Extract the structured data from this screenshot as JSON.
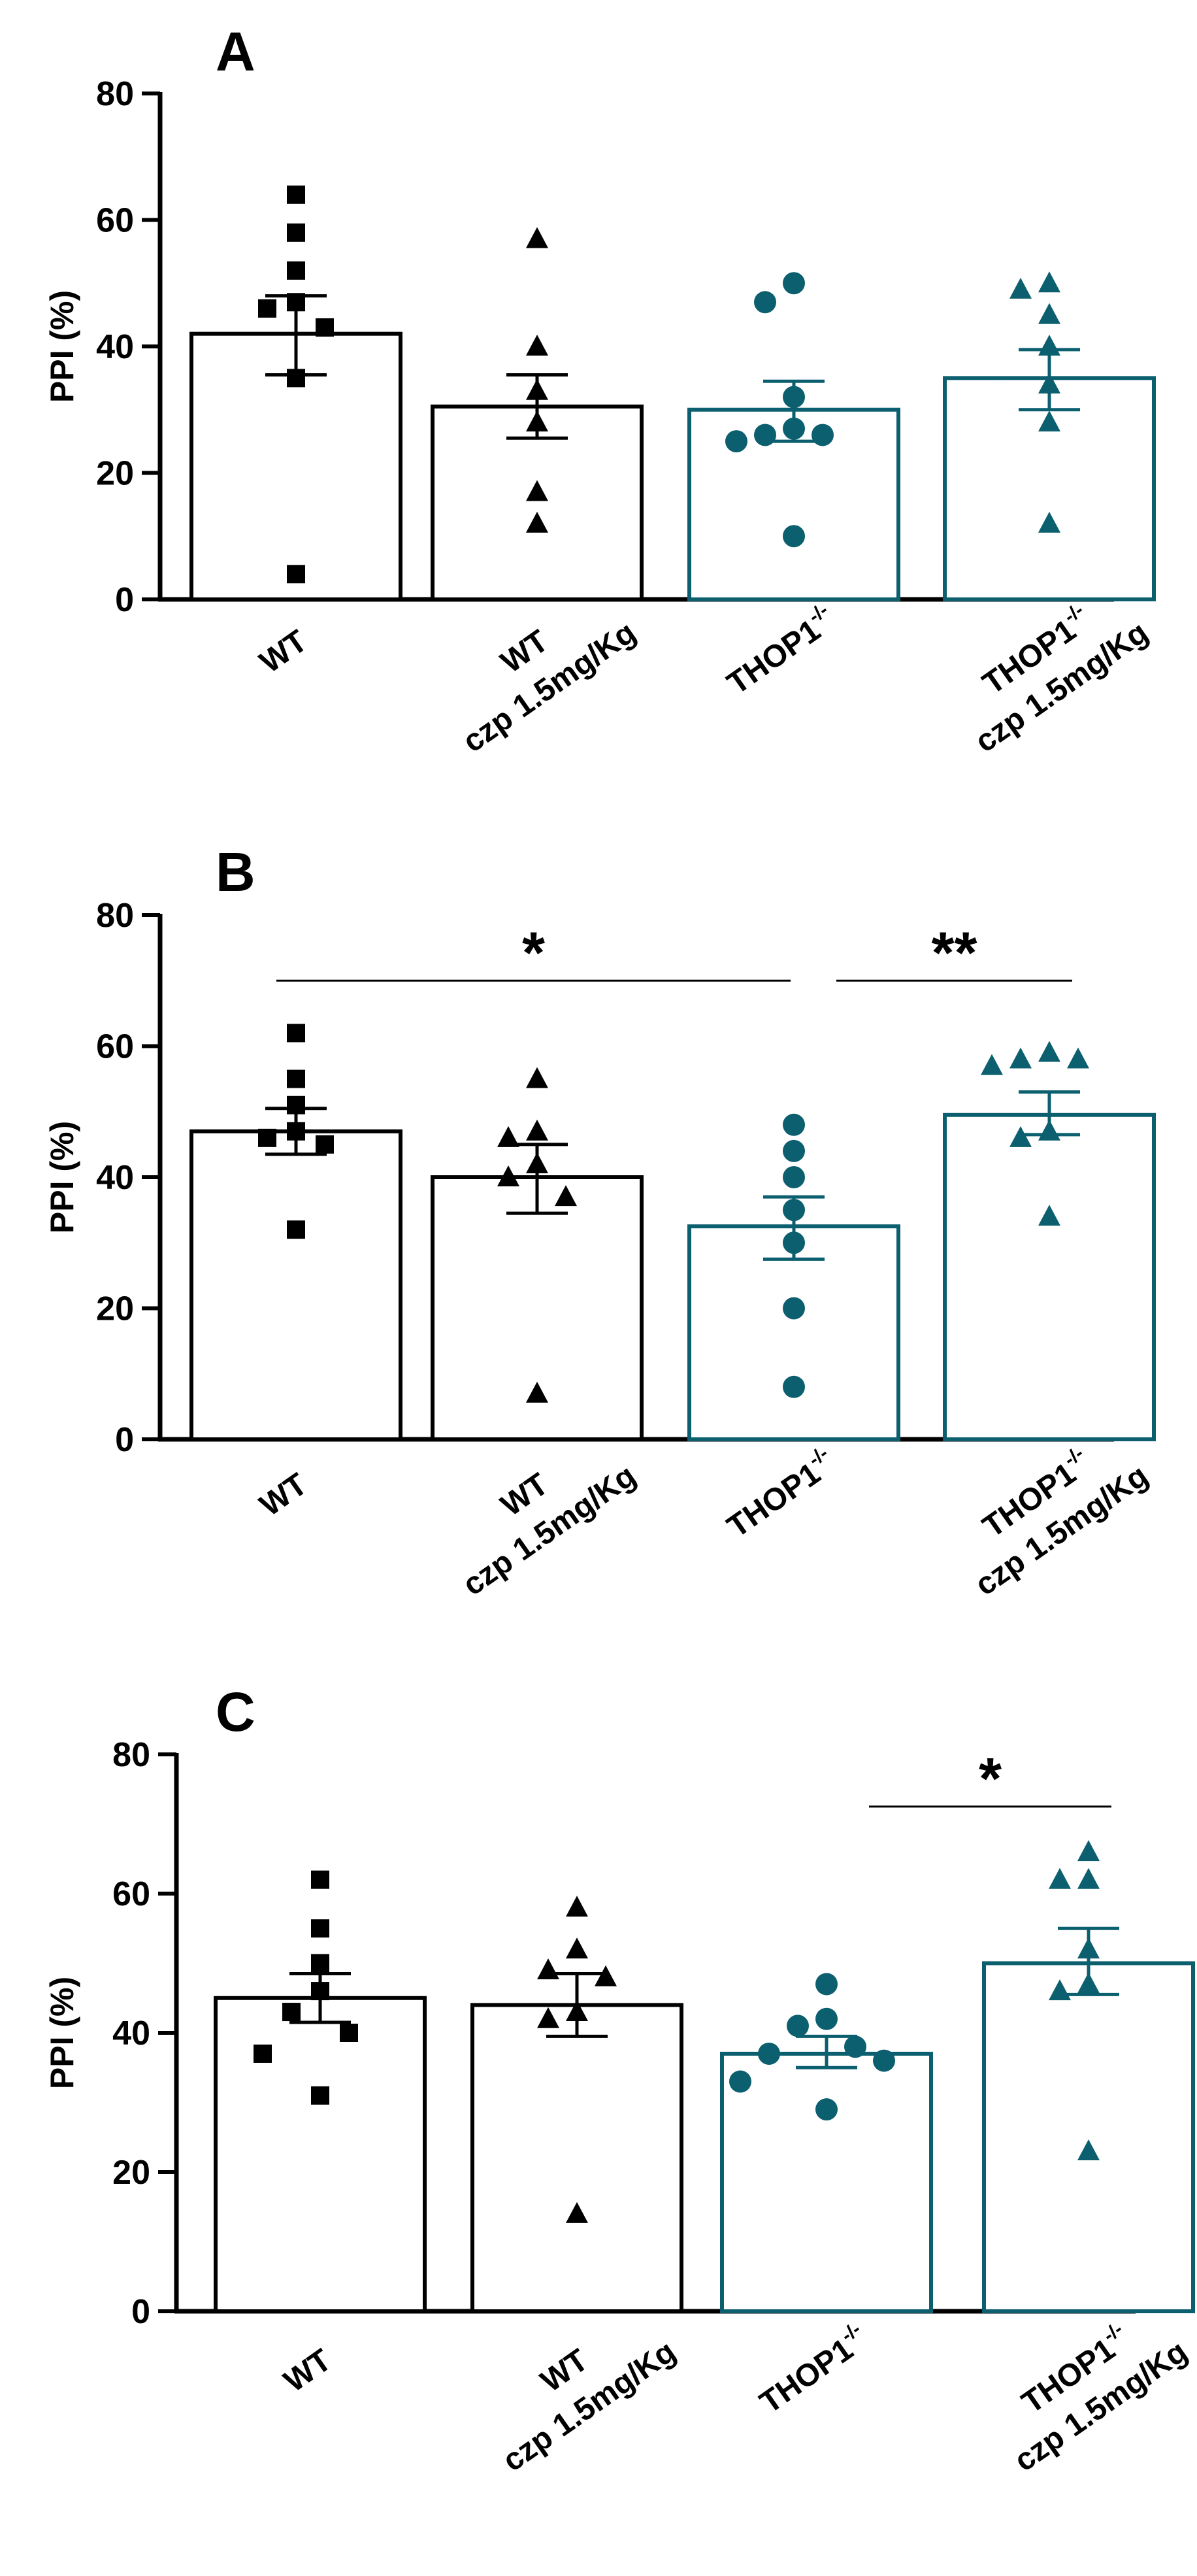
{
  "colors": {
    "black": "#000000",
    "teal": "#0b5f6e",
    "white": "#ffffff"
  },
  "chart_data": [
    {
      "type": "bar",
      "panel_label": "A",
      "ylabel": "PPI (%)",
      "ylim": [
        0,
        80
      ],
      "yticks": [
        "0",
        "20",
        "40",
        "60",
        "80"
      ],
      "categories": [
        {
          "line1": "WT",
          "sup": "",
          "line2": ""
        },
        {
          "line1": "WT",
          "sup": "",
          "line2": "czp 1.5mg/Kg"
        },
        {
          "line1": "THOP1",
          "sup": "-/-",
          "line2": ""
        },
        {
          "line1": "THOP1",
          "sup": "-/-",
          "line2": "czp 1.5mg/Kg"
        }
      ],
      "groups": [
        {
          "name": "WT",
          "mean": 42,
          "sem_low": 35.5,
          "sem_high": 48,
          "marker": "square",
          "color": "black",
          "points": [
            64,
            58,
            52,
            47,
            46,
            43,
            35,
            4
          ]
        },
        {
          "name": "WT czp 1.5mg/Kg",
          "mean": 30.5,
          "sem_low": 25.5,
          "sem_high": 35.5,
          "marker": "triangle",
          "color": "black",
          "points": [
            57,
            40,
            33,
            28,
            17,
            12
          ]
        },
        {
          "name": "THOP1-/-",
          "mean": 30,
          "sem_low": 25,
          "sem_high": 34.5,
          "marker": "circle",
          "color": "teal",
          "points": [
            50,
            47,
            32,
            27,
            26,
            26,
            25,
            10
          ]
        },
        {
          "name": "THOP1-/- czp 1.5mg/Kg",
          "mean": 35,
          "sem_low": 30,
          "sem_high": 39.5,
          "marker": "triangle",
          "color": "teal",
          "points": [
            50,
            49,
            45,
            40,
            34,
            28,
            12
          ]
        }
      ],
      "significance": []
    },
    {
      "type": "bar",
      "panel_label": "B",
      "ylabel": "PPI (%)",
      "ylim": [
        0,
        80
      ],
      "yticks": [
        "0",
        "20",
        "40",
        "60",
        "80"
      ],
      "categories": [
        {
          "line1": "WT",
          "sup": "",
          "line2": ""
        },
        {
          "line1": "WT",
          "sup": "",
          "line2": "czp 1.5mg/Kg"
        },
        {
          "line1": "THOP1",
          "sup": "-/-",
          "line2": ""
        },
        {
          "line1": "THOP1",
          "sup": "-/-",
          "line2": "czp 1.5mg/Kg"
        }
      ],
      "groups": [
        {
          "name": "WT",
          "mean": 47,
          "sem_low": 43.5,
          "sem_high": 50.5,
          "marker": "square",
          "color": "black",
          "points": [
            62,
            55,
            51,
            47,
            46,
            45,
            32
          ]
        },
        {
          "name": "WT czp 1.5mg/Kg",
          "mean": 40,
          "sem_low": 34.5,
          "sem_high": 45,
          "marker": "triangle",
          "color": "black",
          "points": [
            55,
            47,
            46,
            42,
            40,
            37,
            7
          ]
        },
        {
          "name": "THOP1-/-",
          "mean": 32.5,
          "sem_low": 27.5,
          "sem_high": 37,
          "marker": "circle",
          "color": "teal",
          "points": [
            48,
            44,
            40,
            35,
            30,
            20,
            8
          ]
        },
        {
          "name": "THOP1-/- czp 1.5mg/Kg",
          "mean": 49.5,
          "sem_low": 46.5,
          "sem_high": 53,
          "marker": "triangle",
          "color": "teal",
          "points": [
            59,
            58,
            58,
            57,
            47,
            46,
            34
          ]
        }
      ],
      "significance": [
        {
          "from": 0,
          "to": 2,
          "level": 70,
          "label": "*"
        },
        {
          "from": 2,
          "to": 3,
          "level": 70,
          "label": "**"
        }
      ]
    },
    {
      "type": "bar",
      "panel_label": "C",
      "ylabel": "PPI (%)",
      "ylim": [
        0,
        80
      ],
      "yticks": [
        "0",
        "20",
        "40",
        "60",
        "80"
      ],
      "categories": [
        {
          "line1": "WT",
          "sup": "",
          "line2": ""
        },
        {
          "line1": "WT",
          "sup": "",
          "line2": "czp 1.5mg/Kg"
        },
        {
          "line1": "THOP1",
          "sup": "-/-",
          "line2": ""
        },
        {
          "line1": "THOP1",
          "sup": "-/-",
          "line2": "czp 1.5mg/Kg"
        }
      ],
      "groups": [
        {
          "name": "WT",
          "mean": 45,
          "sem_low": 41.5,
          "sem_high": 48.5,
          "marker": "square",
          "color": "black",
          "points": [
            62,
            55,
            50,
            46,
            43,
            40,
            37,
            31
          ]
        },
        {
          "name": "WT czp 1.5mg/Kg",
          "mean": 44,
          "sem_low": 39.5,
          "sem_high": 48.5,
          "marker": "triangle",
          "color": "black",
          "points": [
            58,
            52,
            49,
            48,
            43,
            42,
            14
          ]
        },
        {
          "name": "THOP1-/-",
          "mean": 37,
          "sem_low": 35,
          "sem_high": 39.5,
          "marker": "circle",
          "color": "teal",
          "points": [
            47,
            42,
            41,
            38,
            37,
            36,
            33,
            29
          ]
        },
        {
          "name": "THOP1-/- czp 1.5mg/Kg",
          "mean": 50,
          "sem_low": 45.5,
          "sem_high": 55,
          "marker": "triangle",
          "color": "teal",
          "points": [
            66,
            62,
            62,
            52,
            47,
            46,
            23
          ]
        }
      ],
      "significance": [
        {
          "from": 2,
          "to": 3,
          "level": 72.5,
          "label": "*"
        }
      ]
    }
  ]
}
